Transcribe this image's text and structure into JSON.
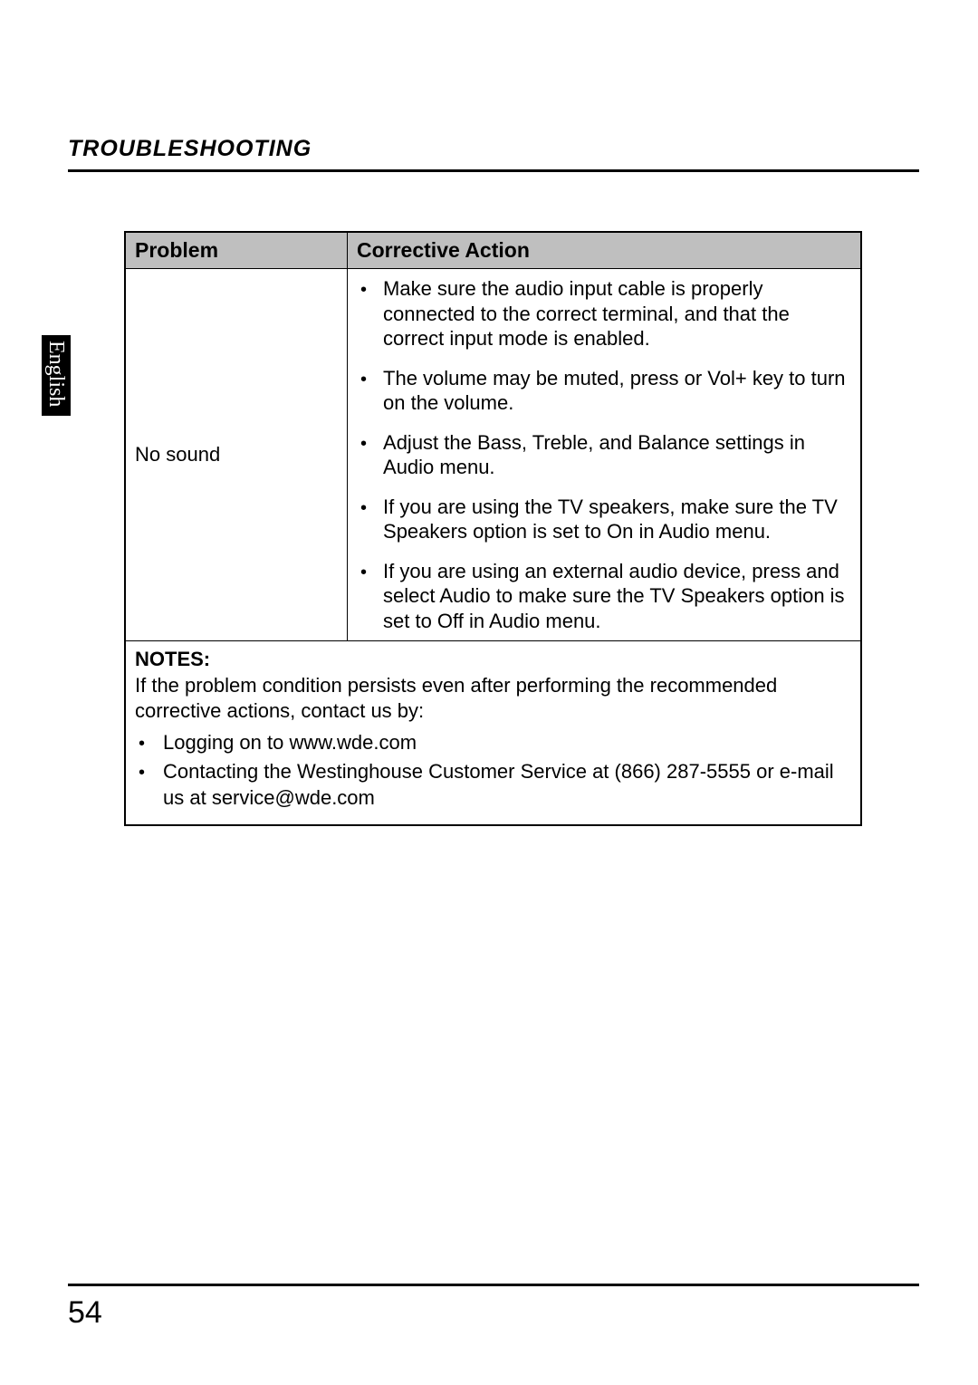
{
  "section_title": "TROUBLESHOOTING",
  "side_tab": "English",
  "table": {
    "header_problem": "Problem",
    "header_action": "Corrective Action",
    "problem": "No sound",
    "actions": [
      "Make sure the audio input cable is properly connected to the correct terminal, and that the correct input mode is enabled.",
      "The volume may be muted, press or Vol+ key to turn on the volume.",
      "Adjust the Bass, Treble, and Balance settings in Audio menu.",
      "If you are using the TV speakers, make sure the TV Speakers option is set to On in Audio menu.",
      "If you are using an external audio device, press and select Audio to make sure the TV Speakers option is set to Off in Audio menu."
    ],
    "notes_label": "NOTES",
    "notes_intro": "If the problem condition persists even after performing the recommended corrective actions, contact us by:",
    "notes_items": [
      "Logging on to www.wde.com",
      "Contacting the Westinghouse Customer Service at (866) 287-5555 or e-mail us at service@wde.com"
    ]
  },
  "page_number": "54",
  "colors": {
    "header_bg": "#bfbfbf",
    "border": "#000000",
    "tab_bg": "#000000",
    "tab_fg": "#ffffff",
    "page_bg": "#ffffff",
    "text": "#000000"
  }
}
